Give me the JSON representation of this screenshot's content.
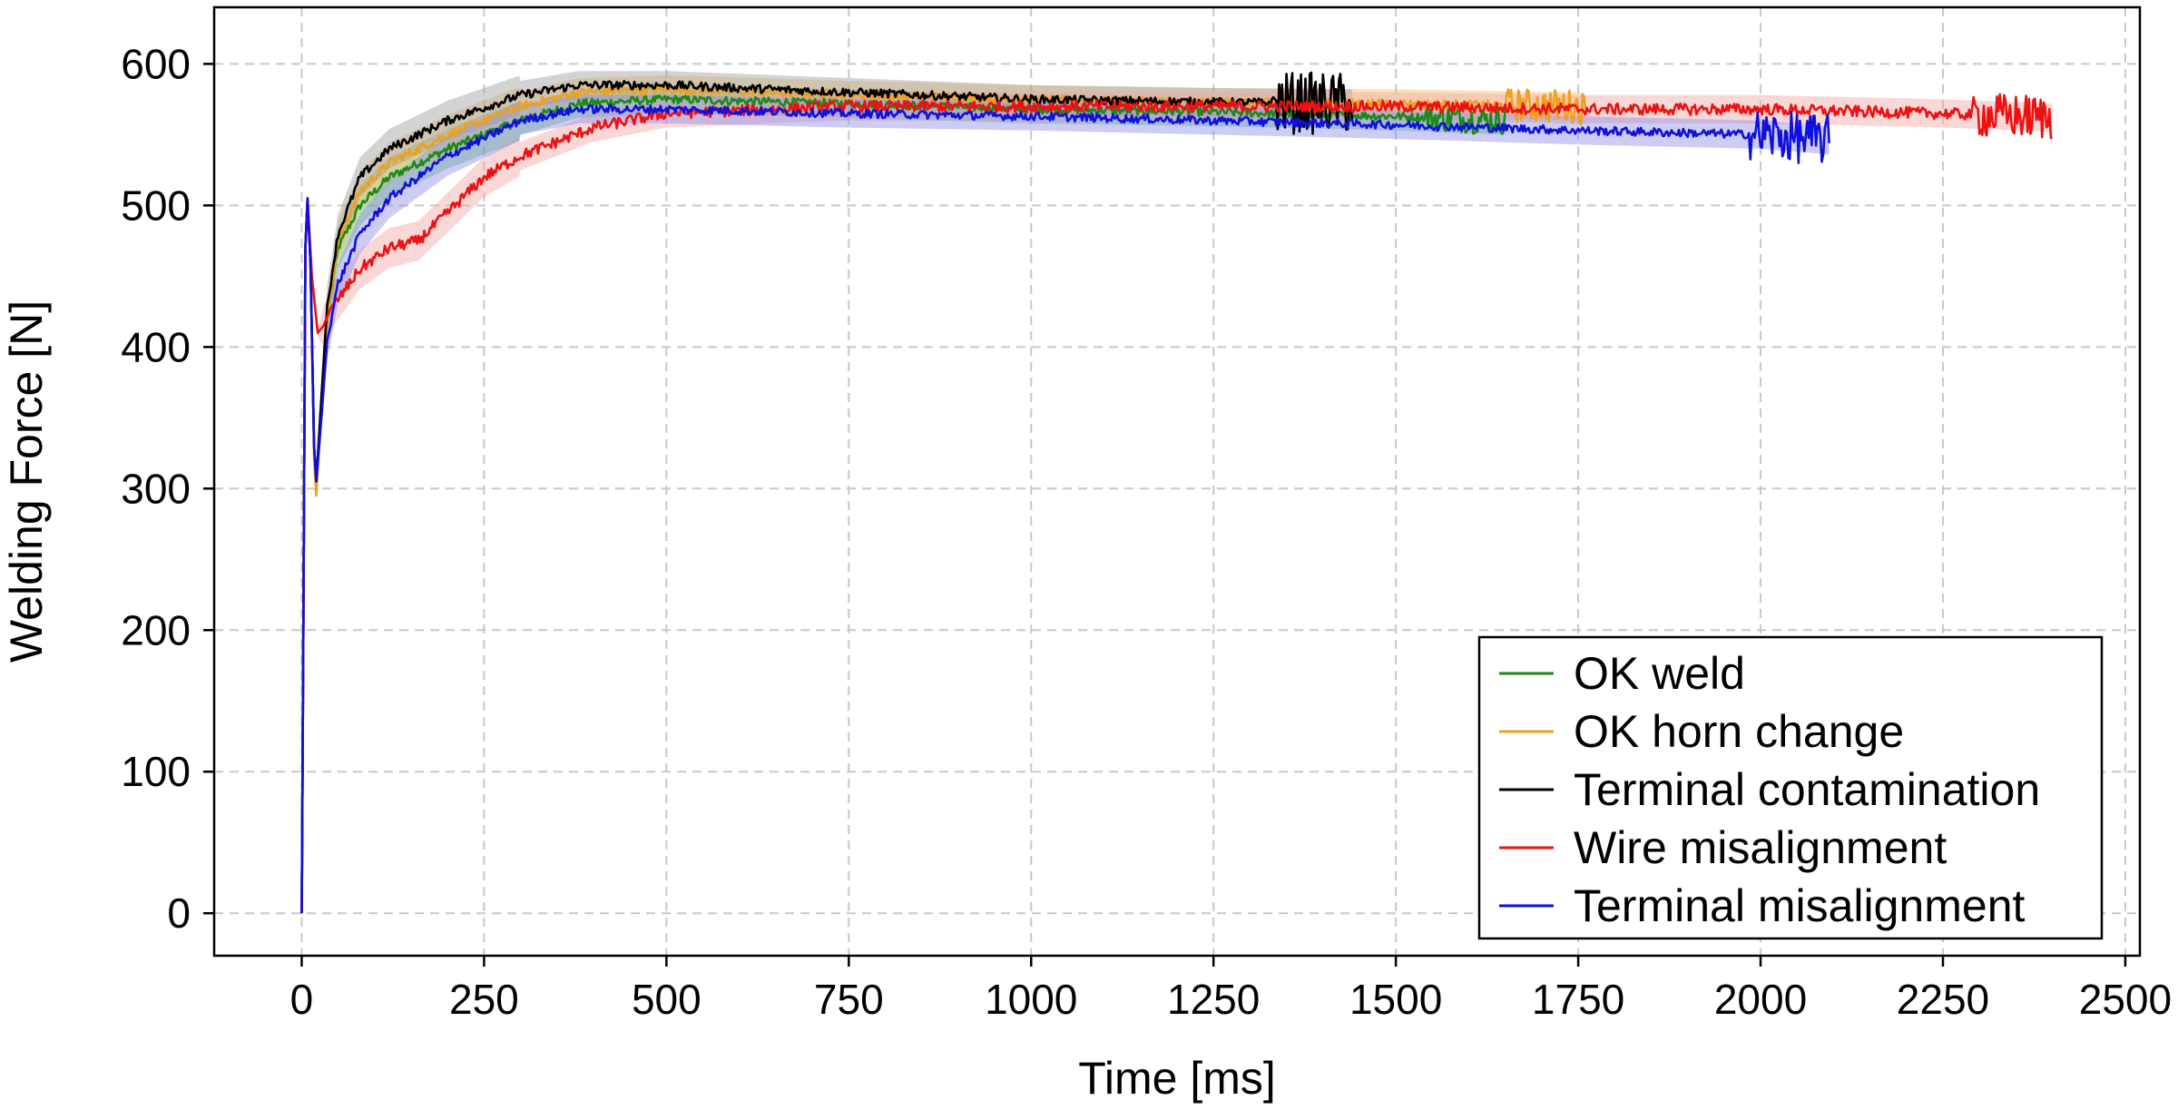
{
  "chart_data": {
    "type": "line",
    "title": "",
    "xlabel": "Time [ms]",
    "ylabel": "Welding Force [N]",
    "xlim": [
      -120,
      2520
    ],
    "ylim": [
      -30,
      640
    ],
    "xticks": [
      0,
      250,
      500,
      750,
      1000,
      1250,
      1500,
      1750,
      2000,
      2250,
      2500
    ],
    "yticks": [
      0,
      100,
      200,
      300,
      400,
      500,
      600
    ],
    "grid": true,
    "legend_position": "bottom-right",
    "series": [
      {
        "name": "OK weld",
        "color": "#1a8a1a",
        "band_color": "#5fbf5f",
        "noise": 3,
        "end_noise": 10,
        "points": [
          [
            0,
            0
          ],
          [
            2,
            180
          ],
          [
            5,
            470
          ],
          [
            8,
            505
          ],
          [
            12,
            460
          ],
          [
            17,
            330
          ],
          [
            20,
            305
          ],
          [
            27,
            360
          ],
          [
            35,
            420
          ],
          [
            50,
            470
          ],
          [
            80,
            500
          ],
          [
            120,
            520
          ],
          [
            200,
            540
          ],
          [
            300,
            560
          ],
          [
            380,
            572
          ],
          [
            500,
            575
          ],
          [
            750,
            572
          ],
          [
            1000,
            568
          ],
          [
            1250,
            566
          ],
          [
            1500,
            563
          ],
          [
            1650,
            560
          ]
        ]
      },
      {
        "name": "OK horn change",
        "color": "#f0a020",
        "band_color": "#f5c26b",
        "noise": 3,
        "end_noise": 12,
        "points": [
          [
            0,
            0
          ],
          [
            2,
            180
          ],
          [
            5,
            470
          ],
          [
            8,
            505
          ],
          [
            12,
            460
          ],
          [
            17,
            320
          ],
          [
            20,
            295
          ],
          [
            27,
            355
          ],
          [
            35,
            420
          ],
          [
            50,
            475
          ],
          [
            80,
            510
          ],
          [
            120,
            530
          ],
          [
            200,
            550
          ],
          [
            300,
            570
          ],
          [
            380,
            580
          ],
          [
            500,
            582
          ],
          [
            750,
            578
          ],
          [
            1000,
            575
          ],
          [
            1250,
            573
          ],
          [
            1500,
            572
          ],
          [
            1750,
            570
          ],
          [
            1760,
            568
          ]
        ]
      },
      {
        "name": "Terminal contamination",
        "color": "#000000",
        "band_color": "#9e9e9e",
        "noise": 3,
        "end_noise": 22,
        "points": [
          [
            0,
            0
          ],
          [
            2,
            180
          ],
          [
            5,
            470
          ],
          [
            8,
            505
          ],
          [
            12,
            460
          ],
          [
            17,
            330
          ],
          [
            20,
            305
          ],
          [
            27,
            365
          ],
          [
            35,
            430
          ],
          [
            50,
            480
          ],
          [
            80,
            520
          ],
          [
            120,
            540
          ],
          [
            200,
            560
          ],
          [
            300,
            578
          ],
          [
            380,
            585
          ],
          [
            500,
            585
          ],
          [
            750,
            580
          ],
          [
            1000,
            575
          ],
          [
            1250,
            573
          ],
          [
            1440,
            572
          ]
        ]
      },
      {
        "name": "Wire misalignment",
        "color": "#ee1111",
        "band_color": "#f4a6a6",
        "noise": 4,
        "end_noise": 16,
        "points": [
          [
            0,
            0
          ],
          [
            2,
            180
          ],
          [
            5,
            470
          ],
          [
            8,
            505
          ],
          [
            14,
            450
          ],
          [
            22,
            410
          ],
          [
            30,
            415
          ],
          [
            45,
            430
          ],
          [
            80,
            455
          ],
          [
            120,
            470
          ],
          [
            160,
            475
          ],
          [
            200,
            495
          ],
          [
            250,
            520
          ],
          [
            300,
            535
          ],
          [
            400,
            555
          ],
          [
            500,
            565
          ],
          [
            750,
            570
          ],
          [
            1000,
            570
          ],
          [
            1250,
            570
          ],
          [
            1500,
            570
          ],
          [
            1750,
            568
          ],
          [
            2000,
            568
          ],
          [
            2250,
            565
          ],
          [
            2400,
            562
          ]
        ]
      },
      {
        "name": "Terminal misalignment",
        "color": "#1010dd",
        "band_color": "#8f8fe8",
        "noise": 3,
        "end_noise": 18,
        "points": [
          [
            0,
            0
          ],
          [
            2,
            180
          ],
          [
            5,
            470
          ],
          [
            8,
            505
          ],
          [
            12,
            460
          ],
          [
            17,
            330
          ],
          [
            20,
            305
          ],
          [
            27,
            350
          ],
          [
            35,
            405
          ],
          [
            50,
            445
          ],
          [
            80,
            480
          ],
          [
            120,
            505
          ],
          [
            200,
            535
          ],
          [
            300,
            560
          ],
          [
            380,
            568
          ],
          [
            500,
            568
          ],
          [
            750,
            565
          ],
          [
            1000,
            563
          ],
          [
            1250,
            560
          ],
          [
            1500,
            557
          ],
          [
            1750,
            553
          ],
          [
            2000,
            550
          ],
          [
            2095,
            546
          ]
        ]
      }
    ]
  }
}
